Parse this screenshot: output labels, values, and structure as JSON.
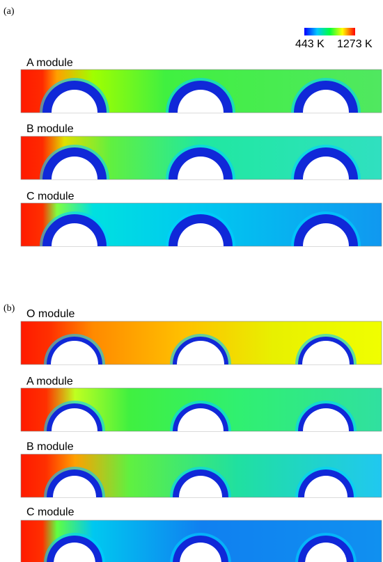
{
  "panels": [
    {
      "label": "(a)",
      "modules": [
        "A module",
        "B module",
        "C module"
      ]
    },
    {
      "label": "(b)",
      "modules": [
        "O module",
        "A module",
        "B module",
        "C module"
      ]
    }
  ],
  "colorbar": {
    "min_label": "443 K",
    "max_label": "1273 K"
  }
}
